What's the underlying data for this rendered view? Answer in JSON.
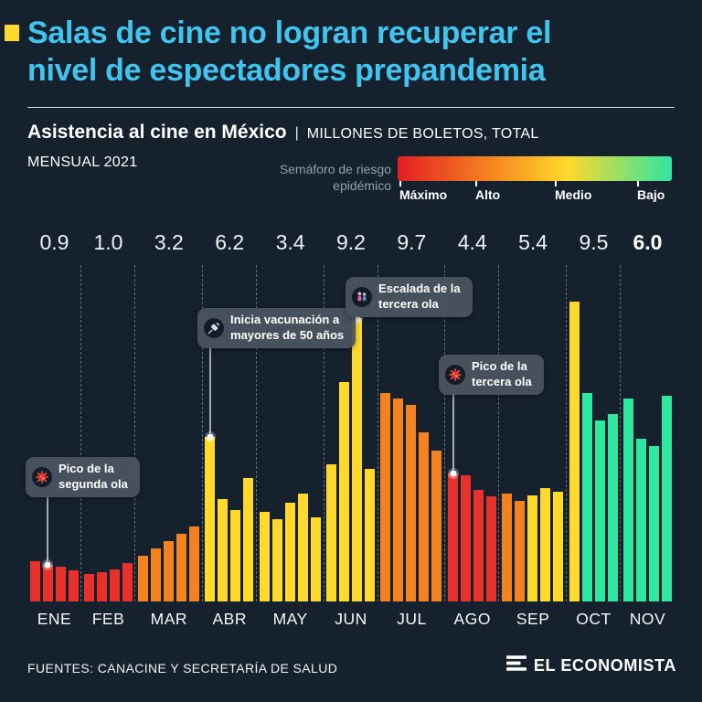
{
  "page": {
    "background": "#16212e"
  },
  "header": {
    "title_line1": "Salas de cine no logran recuperar el",
    "title_line2": "nivel de espectadores prepandemia",
    "title_color": "#41c5ef",
    "accent_color": "#ffd92b"
  },
  "subtitle": {
    "bold": "Asistencia al cine en México",
    "separator": "|",
    "units_line1": "MILLONES DE BOLETOS, TOTAL",
    "units_line2": "MENSUAL 2021"
  },
  "legend": {
    "label_line1": "Semáforo de riesgo",
    "label_line2": "epidémico",
    "stops": [
      "Máximo",
      "Alto",
      "Medio",
      "Bajo"
    ],
    "gradient_colors": [
      "#e31e24",
      "#f58220",
      "#ffd92b",
      "#2ee6a0"
    ]
  },
  "chart_data": {
    "type": "bar",
    "title": "Asistencia al cine en México",
    "subtitle": "Millones de boletos, total mensual 2021",
    "categories": [
      "ENE",
      "FEB",
      "MAR",
      "ABR",
      "MAY",
      "JUN",
      "JUL",
      "AGO",
      "SEP",
      "OCT",
      "NOV"
    ],
    "monthly_totals": [
      0.9,
      1.0,
      3.2,
      6.2,
      3.4,
      9.2,
      9.7,
      4.4,
      5.4,
      9.5,
      6.0
    ],
    "color_map": {
      "red": "#e8312a",
      "orange": "#f58220",
      "yellow": "#ffd92b",
      "green": "#2fe8a0"
    },
    "months": [
      {
        "label": "ENE",
        "total": "0.9",
        "weeks": [
          {
            "v": 0.44,
            "c": "red"
          },
          {
            "v": 0.4,
            "c": "red"
          },
          {
            "v": 0.38,
            "c": "red"
          },
          {
            "v": 0.34,
            "c": "red"
          }
        ]
      },
      {
        "label": "FEB",
        "total": "1.0",
        "weeks": [
          {
            "v": 0.3,
            "c": "red"
          },
          {
            "v": 0.32,
            "c": "red"
          },
          {
            "v": 0.35,
            "c": "red"
          },
          {
            "v": 0.42,
            "c": "red"
          }
        ]
      },
      {
        "label": "MAR",
        "total": "3.2",
        "weeks": [
          {
            "v": 0.5,
            "c": "orange"
          },
          {
            "v": 0.58,
            "c": "orange"
          },
          {
            "v": 0.66,
            "c": "orange"
          },
          {
            "v": 0.74,
            "c": "orange"
          },
          {
            "v": 0.82,
            "c": "orange"
          }
        ]
      },
      {
        "label": "ABR",
        "total": "6.2",
        "weeks": [
          {
            "v": 1.8,
            "c": "yellow"
          },
          {
            "v": 1.12,
            "c": "yellow"
          },
          {
            "v": 1.0,
            "c": "yellow"
          },
          {
            "v": 1.35,
            "c": "yellow"
          }
        ]
      },
      {
        "label": "MAY",
        "total": "3.4",
        "weeks": [
          {
            "v": 0.98,
            "c": "yellow"
          },
          {
            "v": 0.9,
            "c": "yellow"
          },
          {
            "v": 1.08,
            "c": "yellow"
          },
          {
            "v": 1.18,
            "c": "yellow"
          },
          {
            "v": 0.92,
            "c": "yellow"
          }
        ]
      },
      {
        "label": "JUN",
        "total": "9.2",
        "weeks": [
          {
            "v": 1.5,
            "c": "yellow"
          },
          {
            "v": 2.4,
            "c": "yellow"
          },
          {
            "v": 3.1,
            "c": "yellow"
          },
          {
            "v": 1.45,
            "c": "yellow"
          }
        ]
      },
      {
        "label": "JUL",
        "total": "9.7",
        "weeks": [
          {
            "v": 2.28,
            "c": "orange"
          },
          {
            "v": 2.22,
            "c": "orange"
          },
          {
            "v": 2.15,
            "c": "orange"
          },
          {
            "v": 1.85,
            "c": "orange"
          },
          {
            "v": 1.65,
            "c": "orange"
          }
        ]
      },
      {
        "label": "AGO",
        "total": "4.4",
        "weeks": [
          {
            "v": 1.4,
            "c": "red"
          },
          {
            "v": 1.38,
            "c": "red"
          },
          {
            "v": 1.22,
            "c": "red"
          },
          {
            "v": 1.15,
            "c": "red"
          }
        ]
      },
      {
        "label": "SEP",
        "total": "5.4",
        "weeks": [
          {
            "v": 1.18,
            "c": "orange"
          },
          {
            "v": 1.1,
            "c": "orange"
          },
          {
            "v": 1.16,
            "c": "yellow"
          },
          {
            "v": 1.24,
            "c": "yellow"
          },
          {
            "v": 1.2,
            "c": "yellow"
          }
        ]
      },
      {
        "label": "OCT",
        "total": "9.5",
        "weeks": [
          {
            "v": 3.28,
            "c": "yellow"
          },
          {
            "v": 2.28,
            "c": "green"
          },
          {
            "v": 1.98,
            "c": "green"
          },
          {
            "v": 2.05,
            "c": "green"
          }
        ]
      },
      {
        "label": "NOV",
        "total": "6.0",
        "total_bold": true,
        "weeks": [
          {
            "v": 2.22,
            "c": "green"
          },
          {
            "v": 1.78,
            "c": "green"
          },
          {
            "v": 1.7,
            "c": "green"
          },
          {
            "v": 2.25,
            "c": "green"
          }
        ]
      }
    ]
  },
  "annotations": [
    {
      "id": "second-wave",
      "icon": "virus-icon",
      "line1": "Pico de la",
      "line2": "segunda ola"
    },
    {
      "id": "vaccination",
      "icon": "syringe-icon",
      "line1": "Inicia vacunación a",
      "line2": "mayores de 50 años"
    },
    {
      "id": "third-wave-escalation",
      "icon": "people-icon",
      "line1": "Escalada de la",
      "line2": "tercera ola"
    },
    {
      "id": "third-wave-peak",
      "icon": "virus-icon",
      "line1": "Pico de la",
      "line2": "tercera ola"
    }
  ],
  "footer": {
    "sources": "FUENTES: CANACINE Y SECRETARÍA DE SALUD",
    "brand": "EL ECONOMISTA"
  }
}
